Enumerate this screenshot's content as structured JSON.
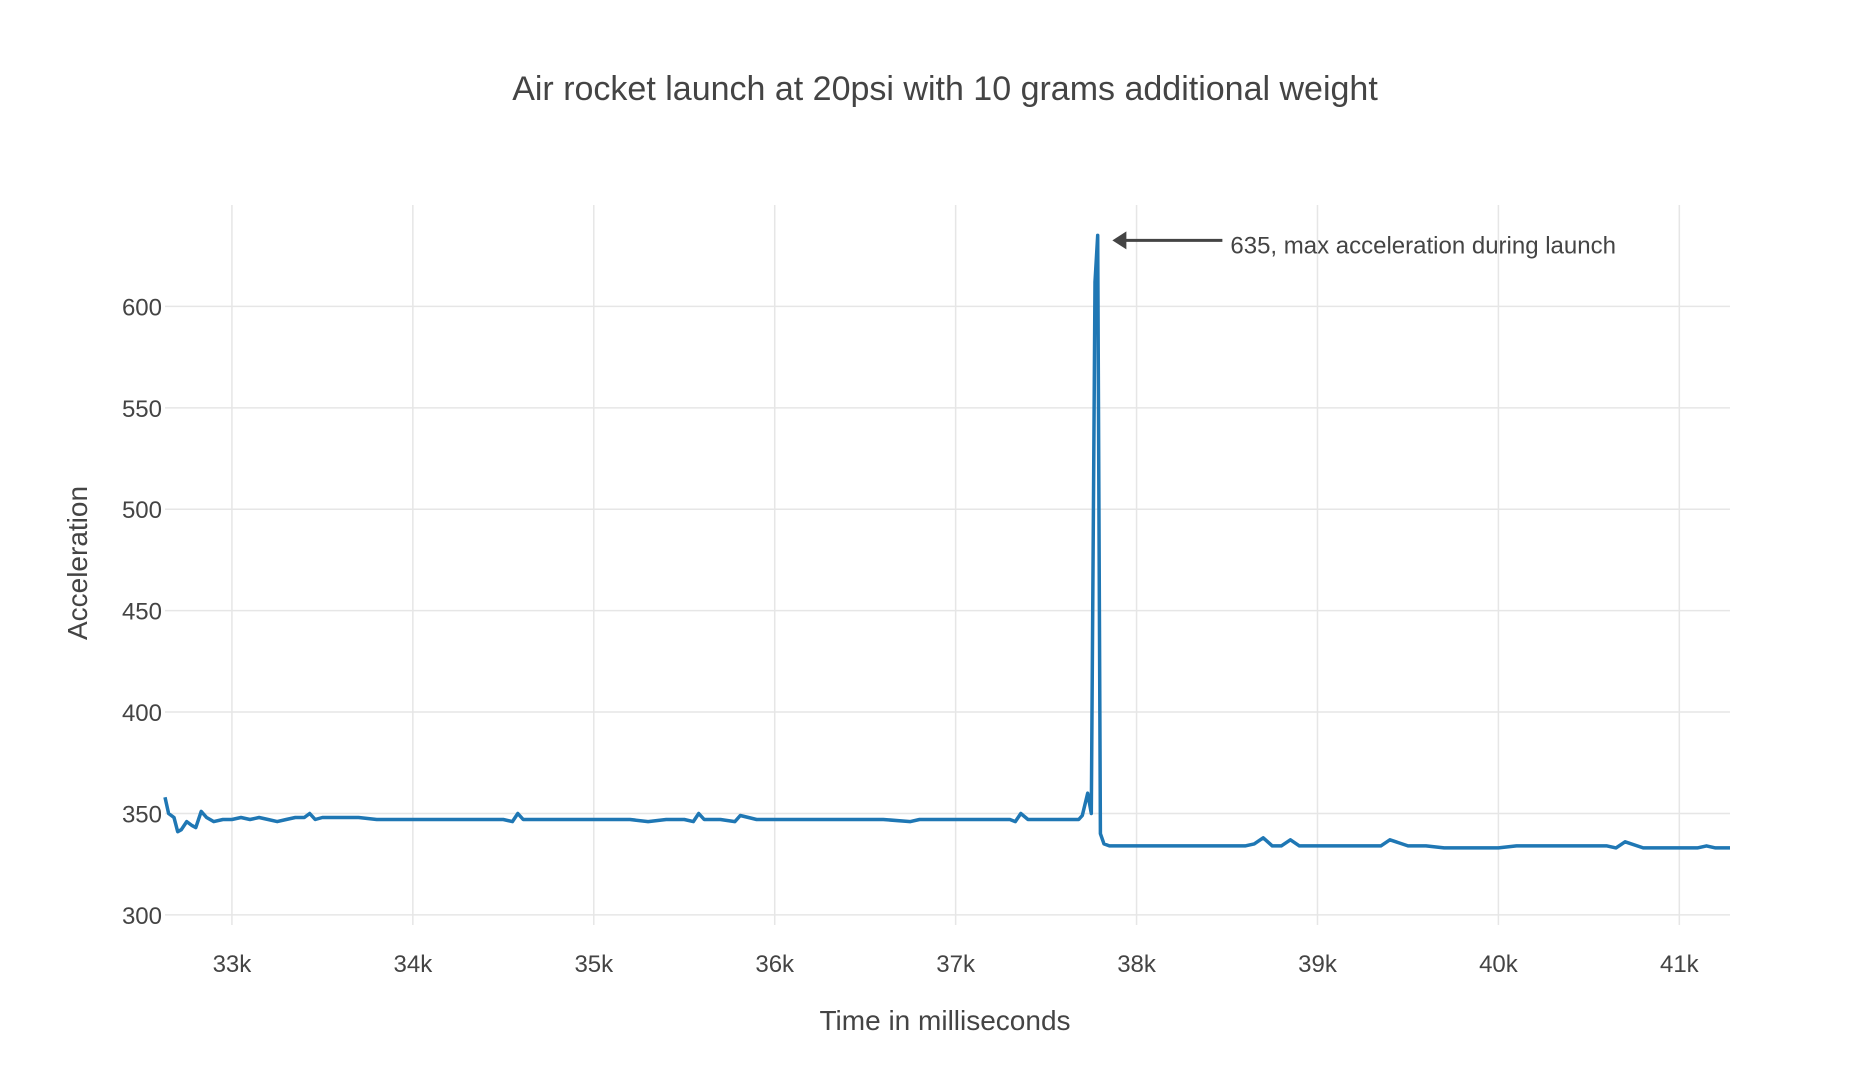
{
  "chart_data": {
    "type": "line",
    "title": "Air rocket launch at 20psi with 10 grams additional weight",
    "xlabel": "Time in milliseconds",
    "ylabel": "Acceleration",
    "xlim": [
      32630,
      41280
    ],
    "ylim": [
      295,
      650
    ],
    "x_ticks": [
      33000,
      34000,
      35000,
      36000,
      37000,
      38000,
      39000,
      40000,
      41000
    ],
    "x_tick_labels": [
      "33k",
      "34k",
      "35k",
      "36k",
      "37k",
      "38k",
      "39k",
      "40k",
      "41k"
    ],
    "y_ticks": [
      300,
      350,
      400,
      450,
      500,
      550,
      600
    ],
    "y_tick_labels": [
      "300",
      "350",
      "400",
      "450",
      "500",
      "550",
      "600"
    ],
    "grid": true,
    "series": [
      {
        "color": "#1f77b4",
        "x": [
          32630,
          32650,
          32680,
          32700,
          32720,
          32750,
          32780,
          32800,
          32830,
          32860,
          32900,
          32950,
          33000,
          33050,
          33100,
          33150,
          33200,
          33250,
          33300,
          33350,
          33400,
          33430,
          33460,
          33500,
          33600,
          33700,
          33800,
          33900,
          34000,
          34100,
          34200,
          34300,
          34400,
          34500,
          34550,
          34580,
          34610,
          34700,
          34800,
          34900,
          35000,
          35100,
          35200,
          35300,
          35400,
          35500,
          35550,
          35580,
          35610,
          35700,
          35780,
          35810,
          35900,
          36000,
          36200,
          36400,
          36600,
          36750,
          36800,
          36900,
          37000,
          37100,
          37200,
          37300,
          37330,
          37360,
          37400,
          37500,
          37600,
          37680,
          37700,
          37730,
          37750,
          37770,
          37785,
          37800,
          37820,
          37850,
          37900,
          38000,
          38100,
          38200,
          38300,
          38400,
          38500,
          38600,
          38650,
          38700,
          38750,
          38800,
          38850,
          38900,
          39000,
          39100,
          39200,
          39300,
          39350,
          39400,
          39500,
          39600,
          39700,
          39800,
          39900,
          40000,
          40100,
          40200,
          40300,
          40400,
          40500,
          40600,
          40650,
          40700,
          40800,
          40900,
          41000,
          41100,
          41150,
          41200,
          41280
        ],
        "y": [
          358,
          350,
          348,
          341,
          342,
          346,
          344,
          343,
          351,
          348,
          346,
          347,
          347,
          348,
          347,
          348,
          347,
          346,
          347,
          348,
          348,
          350,
          347,
          348,
          348,
          348,
          347,
          347,
          347,
          347,
          347,
          347,
          347,
          347,
          346,
          350,
          347,
          347,
          347,
          347,
          347,
          347,
          347,
          346,
          347,
          347,
          346,
          350,
          347,
          347,
          346,
          349,
          347,
          347,
          347,
          347,
          347,
          346,
          347,
          347,
          347,
          347,
          347,
          347,
          346,
          350,
          347,
          347,
          347,
          347,
          349,
          360,
          350,
          612,
          635,
          340,
          335,
          334,
          334,
          334,
          334,
          334,
          334,
          334,
          334,
          334,
          335,
          338,
          334,
          334,
          337,
          334,
          334,
          334,
          334,
          334,
          334,
          337,
          334,
          334,
          333,
          333,
          333,
          333,
          334,
          334,
          334,
          334,
          334,
          334,
          333,
          336,
          333,
          333,
          333,
          333,
          334,
          333,
          333
        ]
      }
    ],
    "annotation": {
      "text": "635,  max acceleration  during launch",
      "x": 37800,
      "y": 635
    }
  }
}
